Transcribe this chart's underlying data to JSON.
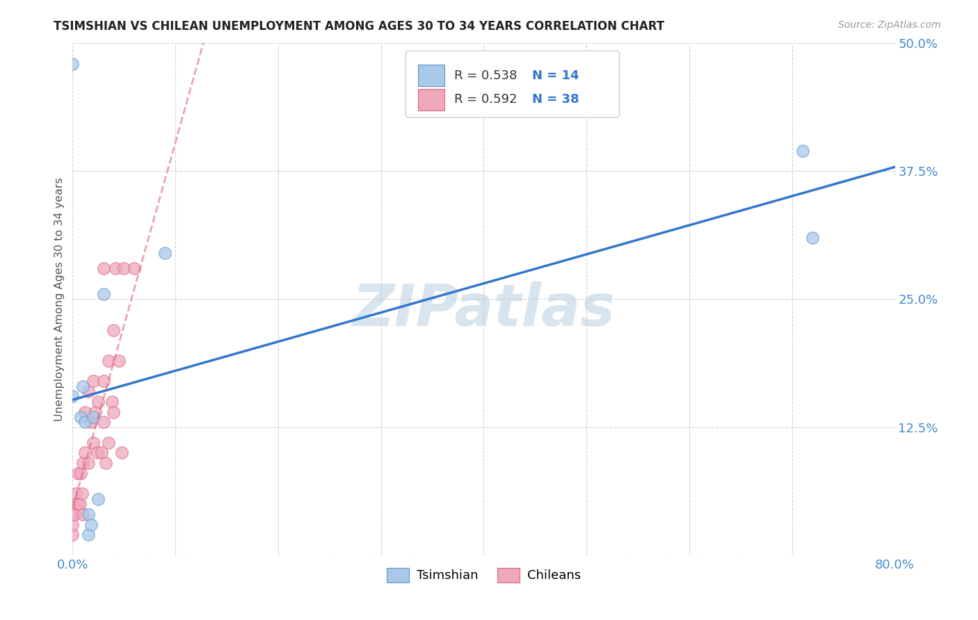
{
  "title": "TSIMSHIAN VS CHILEAN UNEMPLOYMENT AMONG AGES 30 TO 34 YEARS CORRELATION CHART",
  "source": "Source: ZipAtlas.com",
  "ylabel": "Unemployment Among Ages 30 to 34 years",
  "xlim": [
    0.0,
    0.8
  ],
  "ylim": [
    0.0,
    0.5
  ],
  "xticks": [
    0.0,
    0.1,
    0.2,
    0.3,
    0.4,
    0.5,
    0.6,
    0.7,
    0.8
  ],
  "yticks": [
    0.0,
    0.125,
    0.25,
    0.375,
    0.5
  ],
  "background_color": "#ffffff",
  "grid_color": "#cccccc",
  "watermark_text": "ZIPatlas",
  "watermark_color": "#b8cfe0",
  "tsimshian_face": "#aac8e8",
  "tsimshian_edge": "#5599cc",
  "chilean_face": "#f0a8bb",
  "chilean_edge": "#dd6688",
  "blue_line_color": "#3377cc",
  "pink_line_color": "#dd6688",
  "axis_tick_color": "#4488cc",
  "title_color": "#222222",
  "source_color": "#999999",
  "ylabel_color": "#555555",
  "legend_r_color": "#333333",
  "legend_n_color": "#3377cc",
  "tsimshian_x": [
    0.0,
    0.008,
    0.01,
    0.012,
    0.015,
    0.015,
    0.018,
    0.02,
    0.025,
    0.03,
    0.0,
    0.71,
    0.72,
    0.09
  ],
  "tsimshian_y": [
    0.155,
    0.135,
    0.165,
    0.13,
    0.02,
    0.04,
    0.03,
    0.135,
    0.055,
    0.255,
    0.48,
    0.395,
    0.31,
    0.295
  ],
  "chilean_x": [
    0.0,
    0.0,
    0.0,
    0.0,
    0.002,
    0.003,
    0.005,
    0.005,
    0.007,
    0.008,
    0.009,
    0.01,
    0.01,
    0.012,
    0.012,
    0.015,
    0.015,
    0.018,
    0.02,
    0.02,
    0.022,
    0.024,
    0.025,
    0.028,
    0.03,
    0.03,
    0.03,
    0.032,
    0.035,
    0.035,
    0.038,
    0.04,
    0.04,
    0.042,
    0.045,
    0.048,
    0.05,
    0.06
  ],
  "chilean_y": [
    0.02,
    0.03,
    0.04,
    0.05,
    0.04,
    0.06,
    0.05,
    0.08,
    0.05,
    0.08,
    0.06,
    0.09,
    0.04,
    0.1,
    0.14,
    0.09,
    0.16,
    0.13,
    0.17,
    0.11,
    0.14,
    0.1,
    0.15,
    0.1,
    0.17,
    0.13,
    0.28,
    0.09,
    0.11,
    0.19,
    0.15,
    0.22,
    0.14,
    0.28,
    0.19,
    0.1,
    0.28,
    0.28
  ],
  "legend_r1": "R = 0.538",
  "legend_n1": "N = 14",
  "legend_r2": "R = 0.592",
  "legend_n2": "N = 38",
  "legend_label1": "Tsimshian",
  "legend_label2": "Chileans",
  "scatter_size": 160,
  "marker_alpha": 0.75
}
